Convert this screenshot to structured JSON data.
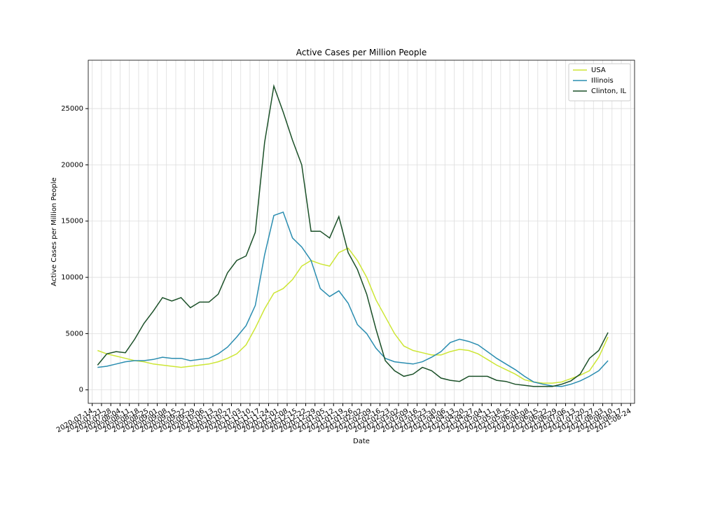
{
  "chart_data": {
    "type": "line",
    "title": "Active Cases per Million People",
    "x_label": "Date",
    "y_label": "Active Cases per Million People",
    "x": [
      "2020-07-18",
      "2020-07-25",
      "2020-08-01",
      "2020-08-08",
      "2020-08-15",
      "2020-08-22",
      "2020-08-29",
      "2020-09-05",
      "2020-09-12",
      "2020-09-19",
      "2020-09-26",
      "2020-10-03",
      "2020-10-10",
      "2020-10-17",
      "2020-10-24",
      "2020-10-31",
      "2020-11-07",
      "2020-11-14",
      "2020-11-21",
      "2020-11-28",
      "2020-12-05",
      "2020-12-12",
      "2020-12-19",
      "2020-12-26",
      "2021-01-02",
      "2021-01-09",
      "2021-01-16",
      "2021-01-23",
      "2021-01-30",
      "2021-02-06",
      "2021-02-13",
      "2021-02-20",
      "2021-02-27",
      "2021-03-06",
      "2021-03-13",
      "2021-03-20",
      "2021-03-27",
      "2021-04-03",
      "2021-04-10",
      "2021-04-17",
      "2021-04-24",
      "2021-05-01",
      "2021-05-08",
      "2021-05-15",
      "2021-05-22",
      "2021-05-29",
      "2021-06-05",
      "2021-06-12",
      "2021-06-19",
      "2021-06-26",
      "2021-07-03",
      "2021-07-10",
      "2021-07-17",
      "2021-07-24",
      "2021-07-31",
      "2021-08-07"
    ],
    "series": [
      {
        "name": "USA",
        "color": "#cde635",
        "values": [
          3500,
          3200,
          3000,
          2800,
          2600,
          2500,
          2300,
          2200,
          2100,
          2000,
          2100,
          2200,
          2300,
          2500,
          2800,
          3200,
          4000,
          5500,
          7200,
          8600,
          9000,
          9800,
          11000,
          11500,
          11200,
          11000,
          12200,
          12600,
          11500,
          10000,
          8000,
          6500,
          5000,
          3900,
          3500,
          3300,
          3100,
          3100,
          3400,
          3600,
          3500,
          3200,
          2700,
          2200,
          1800,
          1400,
          900,
          700,
          600,
          600,
          700,
          1000,
          1300,
          1700,
          2900,
          4700
        ]
      },
      {
        "name": "Illinois",
        "color": "#2a8db0",
        "values": [
          2000,
          2100,
          2300,
          2500,
          2600,
          2600,
          2700,
          2900,
          2800,
          2800,
          2600,
          2700,
          2800,
          3200,
          3800,
          4700,
          5700,
          7500,
          12000,
          15500,
          15800,
          13500,
          12700,
          11500,
          9000,
          8300,
          8800,
          7700,
          5800,
          5000,
          3700,
          2800,
          2500,
          2400,
          2300,
          2500,
          2900,
          3400,
          4200,
          4500,
          4300,
          4000,
          3400,
          2800,
          2300,
          1800,
          1200,
          700,
          500,
          350,
          300,
          500,
          800,
          1200,
          1700,
          2600
        ]
      },
      {
        "name": "Clinton, IL",
        "color": "#1b5028",
        "values": [
          2200,
          3200,
          3400,
          3300,
          4500,
          5900,
          7000,
          8200,
          7900,
          8200,
          7300,
          7800,
          7800,
          8500,
          10400,
          11500,
          11900,
          14000,
          22000,
          27000,
          24700,
          22200,
          20000,
          14100,
          14100,
          13500,
          15400,
          12200,
          10700,
          8500,
          5400,
          2600,
          1700,
          1200,
          1400,
          2000,
          1700,
          1050,
          850,
          750,
          1200,
          1200,
          1200,
          850,
          750,
          500,
          400,
          300,
          300,
          300,
          500,
          800,
          1400,
          2800,
          3500,
          5100
        ]
      }
    ],
    "xlim": [
      "2020-07-11",
      "2021-08-27"
    ],
    "xticks": [
      "2020-07-14",
      "2020-07-21",
      "2020-07-28",
      "2020-08-04",
      "2020-08-11",
      "2020-08-18",
      "2020-08-25",
      "2020-09-01",
      "2020-09-08",
      "2020-09-15",
      "2020-09-22",
      "2020-09-29",
      "2020-10-06",
      "2020-10-13",
      "2020-10-20",
      "2020-10-27",
      "2020-11-03",
      "2020-11-10",
      "2020-11-17",
      "2020-11-24",
      "2020-12-01",
      "2020-12-08",
      "2020-12-15",
      "2020-12-22",
      "2020-12-29",
      "2021-01-05",
      "2021-01-12",
      "2021-01-19",
      "2021-01-26",
      "2021-02-02",
      "2021-02-09",
      "2021-02-16",
      "2021-02-23",
      "2021-03-02",
      "2021-03-09",
      "2021-03-16",
      "2021-03-23",
      "2021-03-30",
      "2021-04-06",
      "2021-04-13",
      "2021-04-20",
      "2021-04-27",
      "2021-05-04",
      "2021-05-11",
      "2021-05-18",
      "2021-05-25",
      "2021-06-01",
      "2021-06-08",
      "2021-06-15",
      "2021-06-22",
      "2021-06-29",
      "2021-07-06",
      "2021-07-13",
      "2021-07-20",
      "2021-07-27",
      "2021-08-03",
      "2021-08-10",
      "2021-08-17",
      "2021-08-24"
    ],
    "ylim": [
      -1200,
      29300
    ],
    "yticks": [
      0,
      5000,
      10000,
      15000,
      20000,
      25000
    ],
    "grid": true,
    "legend": "upper right"
  }
}
